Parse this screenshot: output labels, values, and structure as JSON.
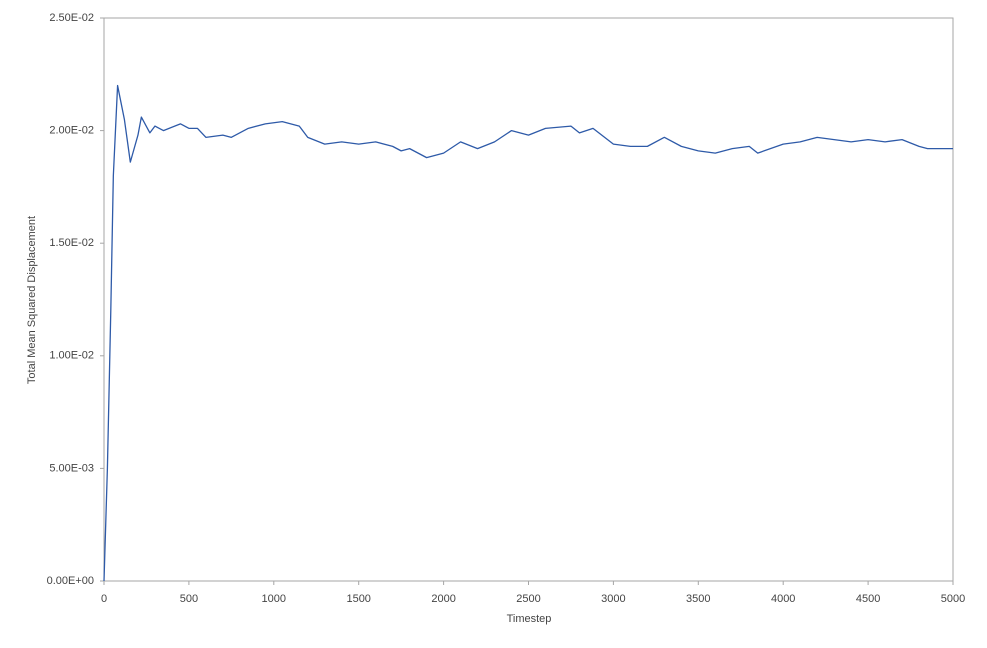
{
  "chart_data": {
    "type": "line",
    "xlabel": "Timestep",
    "ylabel": "Total Mean Squared Displacement",
    "color": "#2e5aa8",
    "x": [
      0,
      20,
      40,
      55,
      80,
      120,
      155,
      200,
      220,
      270,
      300,
      350,
      450,
      500,
      550,
      600,
      700,
      750,
      850,
      950,
      1050,
      1150,
      1200,
      1300,
      1400,
      1500,
      1600,
      1700,
      1750,
      1800,
      1900,
      2000,
      2100,
      2200,
      2300,
      2400,
      2500,
      2600,
      2750,
      2800,
      2880,
      3000,
      3100,
      3200,
      3300,
      3400,
      3500,
      3600,
      3700,
      3800,
      3850,
      4000,
      4100,
      4200,
      4300,
      4400,
      4500,
      4600,
      4700,
      4800,
      4850,
      5000
    ],
    "values": [
      0,
      0.005,
      0.012,
      0.018,
      0.022,
      0.0205,
      0.0186,
      0.0198,
      0.0206,
      0.0199,
      0.0202,
      0.02,
      0.0203,
      0.0201,
      0.0201,
      0.0197,
      0.0198,
      0.0197,
      0.0201,
      0.0203,
      0.0204,
      0.0202,
      0.0197,
      0.0194,
      0.0195,
      0.0194,
      0.0195,
      0.0193,
      0.0191,
      0.0192,
      0.0188,
      0.019,
      0.0195,
      0.0192,
      0.0195,
      0.02,
      0.0198,
      0.0201,
      0.0202,
      0.0199,
      0.0201,
      0.0194,
      0.0193,
      0.0193,
      0.0197,
      0.0193,
      0.0191,
      0.019,
      0.0192,
      0.0193,
      0.019,
      0.0194,
      0.0195,
      0.0197,
      0.0196,
      0.0195,
      0.0196,
      0.0195,
      0.0196,
      0.0193,
      0.0192,
      0.0192
    ],
    "xlim": [
      0,
      5000
    ],
    "xticks": [
      0,
      500,
      1000,
      1500,
      2000,
      2500,
      3000,
      3500,
      4000,
      4500,
      5000
    ],
    "ylim": [
      0,
      0.025
    ],
    "yticks": [
      {
        "value": 0,
        "label": "0.00E+00"
      },
      {
        "value": 0.005,
        "label": "5.00E-03"
      },
      {
        "value": 0.01,
        "label": "1.00E-02"
      },
      {
        "value": 0.015,
        "label": "1.50E-02"
      },
      {
        "value": 0.02,
        "label": "2.00E-02"
      },
      {
        "value": 0.025,
        "label": "2.50E-02"
      }
    ]
  }
}
